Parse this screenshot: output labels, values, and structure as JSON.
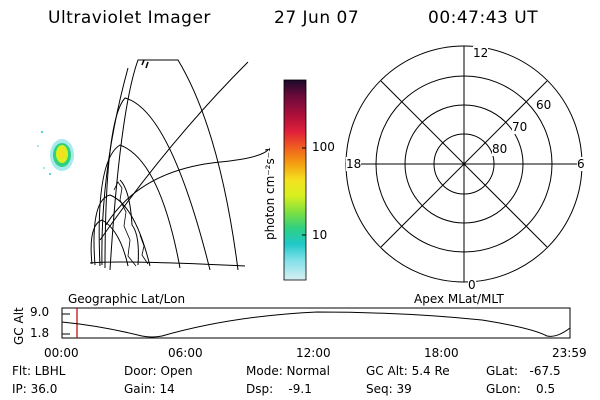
{
  "header": {
    "instrument": "Ultraviolet Imager",
    "date": "27 Jun 07",
    "time": "00:47:43 UT"
  },
  "colorbar": {
    "unit_label": "photon cm⁻²s⁻¹",
    "ticks": [
      "100",
      "10"
    ],
    "colors": [
      "#1a0a2a",
      "#6a0a3a",
      "#b0103a",
      "#e0203a",
      "#f06020",
      "#f4a010",
      "#f4e020",
      "#d8f020",
      "#80e040",
      "#30d080",
      "#20c8c8",
      "#80e0e8",
      "#d8eef2"
    ]
  },
  "left_panel": {
    "caption": "Geographic Lat/Lon"
  },
  "right_panel": {
    "caption": "Apex MLat/MLT",
    "mlt_labels": {
      "top": "12",
      "left": "18",
      "right": "6",
      "bottom": "0"
    },
    "lat_labels": [
      "60",
      "70",
      "80"
    ]
  },
  "altitude_plot": {
    "ylabel": "GC Alt",
    "yticks": [
      "9.0",
      "1.8"
    ],
    "xticks": [
      "00:00",
      "06:00",
      "12:00",
      "18:00",
      "23:59"
    ],
    "marker_color": "#c00000"
  },
  "footer": {
    "flt": "Flt: LBHL",
    "ip": "IP: 36.0",
    "door": "Door: Open",
    "gain": "Gain: 14",
    "mode": "Mode: Normal",
    "dsp": "Dsp:    -9.1",
    "gcalt": "GC Alt: 5.4 Re",
    "seq": "Seq: 39",
    "glat": "GLat:   -67.5",
    "glon": "GLon:    0.5"
  }
}
